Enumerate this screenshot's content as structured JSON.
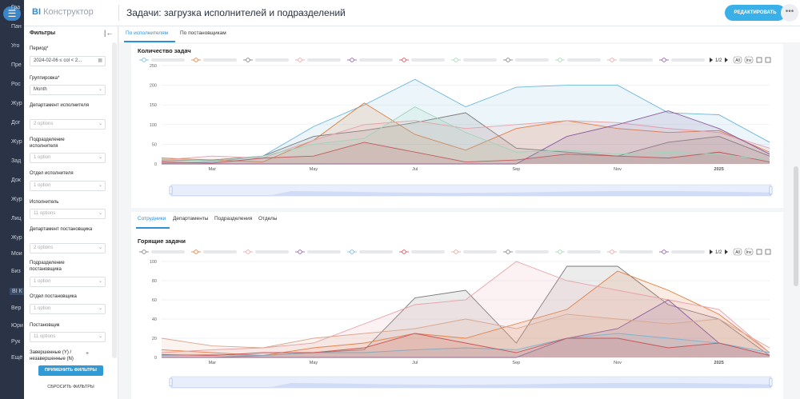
{
  "nav": {
    "items": [
      "Гра",
      "Пан",
      "Уго",
      "Пре",
      "Рос",
      "Жур",
      "Дог",
      "Жур",
      "Зад",
      "Док",
      "Жур",
      "Лиц",
      "Жур",
      "Мои",
      "Биз",
      "BI К",
      "Вер",
      "Юри",
      "Рук",
      "Ещё"
    ],
    "active_index": 15,
    "small": [
      "ПОМО",
      "КАРТ",
      "НАСТ"
    ]
  },
  "header": {
    "logo_bi": "BI",
    "logo_text": "Конструктор",
    "title": "Задачи: загрузка исполнителей и подразделений",
    "edit_label": "РЕДАКТИРОВАТЬ",
    "more_label": "•••"
  },
  "filters": {
    "title": "Фильтры",
    "collapse": "|←",
    "period_label": "Период*",
    "period_value": "2024-02-06 ≤ col < 2...",
    "grouping_label": "Группировка*",
    "grouping_value": "Month",
    "dept_exec_label": "Департамент исполнителя",
    "dept_exec_value": "2 options",
    "sub_exec_label": "Подразделение исполнителя",
    "sub_exec_value": "1 option",
    "otdel_exec_label": "Отдел исполнителя",
    "otdel_exec_value": "1 option",
    "exec_label": "Исполнитель",
    "exec_value": "11 options",
    "dept_setter_label": "Департамент постановщика",
    "dept_setter_value": "2 options",
    "sub_setter_label": "Подразделение постановщика",
    "sub_setter_value": "1 option",
    "otdel_setter_label": "Отдел постановщика",
    "otdel_setter_value": "1 option",
    "setter_label": "Постановщик",
    "setter_value": "11 options",
    "completed_label": "Завершенные (Y) / незавершенные (N)",
    "plus": "+",
    "apply": "ПРИМЕНИТЬ ФИЛЬТРЫ",
    "reset": "СБРОСИТЬ ФИЛЬТРЫ"
  },
  "tabs_top": [
    "По исполнителям",
    "По постановщикам"
  ],
  "tabs_bottom": [
    "Сотрудники",
    "Департаменты",
    "Подразделения",
    "Отделы"
  ],
  "legend_controls": {
    "page": "1/2",
    "all": "All",
    "inv": "Inv"
  },
  "chart_data": [
    {
      "type": "area",
      "title": "Количество задач",
      "x": [
        "2024-02",
        "2024-03",
        "2024-04",
        "2024-05",
        "2024-06",
        "2024-07",
        "2024-08",
        "2024-09",
        "2024-10",
        "2024-11",
        "2024-12",
        "2025-01",
        "2025-02"
      ],
      "x_tick_labels": [
        "Mar",
        "May",
        "Jul",
        "Sep",
        "Nov",
        "2025"
      ],
      "y_ticks": [
        0,
        50,
        100,
        150,
        200,
        250
      ],
      "ylim": [
        0,
        250
      ],
      "grid": true,
      "legend": "top",
      "series": [
        {
          "color": "#6fb6d9",
          "values": [
            2,
            5,
            20,
            95,
            150,
            215,
            145,
            195,
            200,
            200,
            130,
            125,
            55
          ]
        },
        {
          "color": "#e07b39",
          "values": [
            15,
            10,
            5,
            60,
            155,
            75,
            35,
            90,
            110,
            90,
            80,
            85,
            30
          ]
        },
        {
          "color": "#7a7a7a",
          "values": [
            8,
            10,
            20,
            70,
            85,
            105,
            130,
            40,
            30,
            20,
            55,
            70,
            20
          ]
        },
        {
          "color": "#e8a0a8",
          "values": [
            10,
            20,
            15,
            60,
            100,
            110,
            90,
            100,
            110,
            105,
            90,
            80,
            40
          ]
        },
        {
          "color": "#8a5a9e",
          "values": [
            0,
            0,
            0,
            0,
            0,
            0,
            0,
            0,
            70,
            100,
            135,
            90,
            25
          ]
        },
        {
          "color": "#c84850",
          "values": [
            5,
            2,
            15,
            20,
            55,
            30,
            5,
            10,
            25,
            20,
            15,
            30,
            5
          ]
        },
        {
          "color": "#9fd4b8",
          "values": [
            12,
            8,
            20,
            50,
            65,
            145,
            80,
            30,
            35,
            25,
            30,
            25,
            10
          ]
        }
      ]
    },
    {
      "type": "area",
      "title": "Горящие задачи",
      "x": [
        "2024-02",
        "2024-03",
        "2024-04",
        "2024-05",
        "2024-06",
        "2024-07",
        "2024-08",
        "2024-09",
        "2024-10",
        "2024-11",
        "2024-12",
        "2025-01",
        "2025-02"
      ],
      "x_tick_labels": [
        "Mar",
        "May",
        "Jul",
        "Sep",
        "Nov",
        "2025"
      ],
      "y_ticks": [
        0,
        20,
        40,
        60,
        80,
        100
      ],
      "ylim": [
        0,
        100
      ],
      "grid": true,
      "legend": "top",
      "series": [
        {
          "color": "#7a7a7a",
          "values": [
            0,
            0,
            2,
            5,
            8,
            62,
            70,
            15,
            95,
            95,
            55,
            40,
            2
          ]
        },
        {
          "color": "#e07b39",
          "values": [
            8,
            5,
            2,
            10,
            15,
            25,
            20,
            35,
            50,
            90,
            70,
            45,
            5
          ]
        },
        {
          "color": "#e8a0a8",
          "values": [
            5,
            8,
            10,
            15,
            35,
            55,
            60,
            100,
            80,
            70,
            60,
            50,
            5
          ]
        },
        {
          "color": "#8a5a9e",
          "values": [
            0,
            0,
            0,
            0,
            0,
            0,
            0,
            0,
            20,
            30,
            60,
            15,
            2
          ]
        },
        {
          "color": "#6fb6d9",
          "values": [
            2,
            3,
            2,
            5,
            5,
            8,
            10,
            8,
            20,
            25,
            20,
            15,
            5
          ]
        },
        {
          "color": "#c84850",
          "values": [
            3,
            2,
            5,
            5,
            10,
            25,
            15,
            5,
            20,
            20,
            10,
            15,
            2
          ]
        },
        {
          "color": "#d9a890",
          "values": [
            20,
            12,
            10,
            20,
            25,
            30,
            40,
            30,
            45,
            40,
            35,
            40,
            10
          ]
        }
      ]
    }
  ]
}
